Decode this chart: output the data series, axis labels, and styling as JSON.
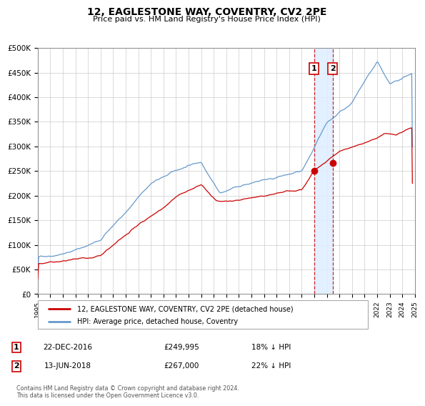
{
  "title": "12, EAGLESTONE WAY, COVENTRY, CV2 2PE",
  "subtitle": "Price paid vs. HM Land Registry's House Price Index (HPI)",
  "legend_label_red": "12, EAGLESTONE WAY, COVENTRY, CV2 2PE (detached house)",
  "legend_label_blue": "HPI: Average price, detached house, Coventry",
  "annotation1_date": "22-DEC-2016",
  "annotation1_price": "£249,995",
  "annotation1_hpi": "18% ↓ HPI",
  "annotation2_date": "13-JUN-2018",
  "annotation2_price": "£267,000",
  "annotation2_hpi": "22% ↓ HPI",
  "footer": "Contains HM Land Registry data © Crown copyright and database right 2024.\nThis data is licensed under the Open Government Licence v3.0.",
  "xmin": 1995,
  "xmax": 2025,
  "ymin": 0,
  "ymax": 500000,
  "yticks": [
    0,
    50000,
    100000,
    150000,
    200000,
    250000,
    300000,
    350000,
    400000,
    450000,
    500000
  ],
  "ytick_labels": [
    "£0",
    "£50K",
    "£100K",
    "£150K",
    "£200K",
    "£250K",
    "£300K",
    "£350K",
    "£400K",
    "£450K",
    "£500K"
  ],
  "red_color": "#cc0000",
  "blue_color": "#6699cc",
  "marker1_x": 2016.97,
  "marker1_y": 249995,
  "marker2_x": 2018.45,
  "marker2_y": 267000,
  "vband_x1": 2016.97,
  "vband_x2": 2018.45,
  "background_color": "#ffffff",
  "plot_bg_color": "#ffffff",
  "grid_color": "#cccccc"
}
